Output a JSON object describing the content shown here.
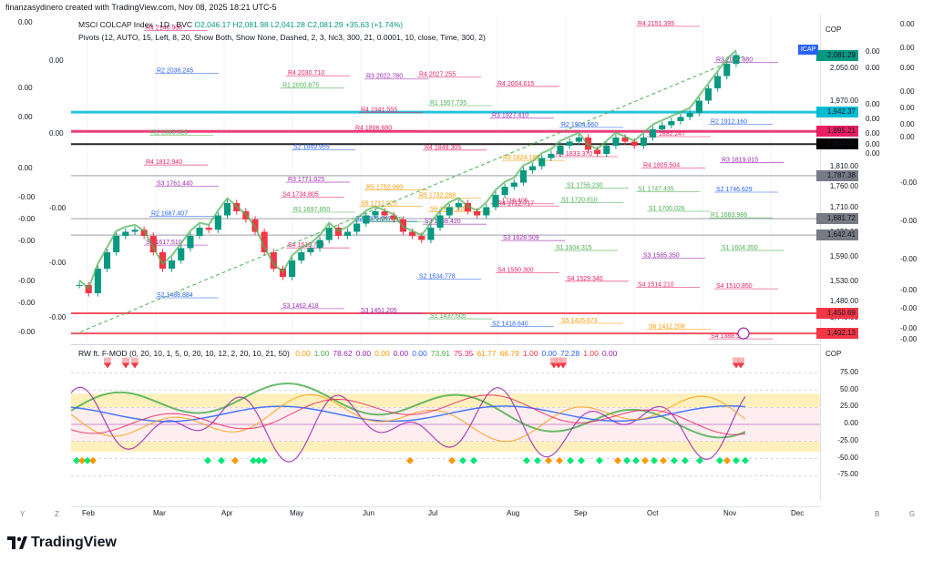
{
  "credit": "finanzasydinero created with TradingView.com, Nov 08, 2025 18:21 UTC-5",
  "legend": {
    "symbol": "MSCI COLCAP Index · 1D · BVC",
    "ohlc": "O2,046.17 H2,081.98 L2,041.28 C2,081.29 +35.63 (+1.74%)",
    "pivots": "Pivots (12, AUTO, 15, Left, 8, 20, Show Both, Show None, Dashed, 2, 3, hlc3, 300, 21, 0.0001, 10, close, Time, 300, 2)",
    "osc": "RW ft. F-MOD (0, 20, 10, 1, 5, 0, 20, 10, 12, 2, 20, 10, 21, 50)",
    "osc_values": [
      "0.00",
      "1.00",
      "78.62",
      "0.00",
      "0.00",
      "0.00",
      "0.00",
      "73.91",
      "75.35",
      "61.77",
      "66.79",
      "1.00",
      "0.00",
      "72.28",
      "1.00",
      "0.00"
    ],
    "osc_colors": [
      "#ff9800",
      "#4caf50",
      "#9c27b0",
      "#9c27b0",
      "#ff9800",
      "#9c27b0",
      "#2962ff",
      "#4caf50",
      "#e91e63",
      "#ff9800",
      "#ff9800",
      "#f23645",
      "#2962ff",
      "#2962ff",
      "#f23645",
      "#9c27b0"
    ]
  },
  "currency": "COP",
  "kcap_label": "ICAP",
  "price_axis": [
    "2,050.00",
    "1,970.00",
    "1,810.00",
    "1,760.00",
    "1,710.00",
    "1,650.00",
    "1,590.00",
    "1,530.00",
    "1,480.00",
    "1,440.00"
  ],
  "price_tags": [
    {
      "label": "2,081.29",
      "color": "#089981"
    },
    {
      "label": "1,942.37",
      "color": "#00bcd4"
    },
    {
      "label": "1,895.21",
      "color": "#e91e63"
    },
    {
      "label": "1,864.00",
      "color": "#000000"
    },
    {
      "label": "1,787.38",
      "color": "#787b86"
    },
    {
      "label": "1,681.72",
      "color": "#787b86"
    },
    {
      "label": "1,642.41",
      "color": "#787b86"
    },
    {
      "label": "1,450.69",
      "color": "#f23645"
    },
    {
      "label": "1,402.13",
      "color": "#f23645"
    }
  ],
  "osc_axis": [
    "75.00",
    "50.00",
    "25.00",
    "0.00",
    "-25.00",
    "-50.00",
    "-75.00"
  ],
  "left_axis": [
    "0.00",
    "0.00",
    "0.00",
    "0.00",
    "0.00",
    "0.00",
    "-0.00",
    "-0.00",
    "-0.00",
    "-0.00",
    "-0.00",
    "-0.00",
    "-0.00",
    "-0.00",
    "-0.00"
  ],
  "right_axis": [
    "0.00",
    "0.00",
    "0.00",
    "0.00",
    "0.00",
    "0.00",
    "0.00",
    "-0.00",
    "-0.00",
    "-0.00",
    "-0.00",
    "-0.00",
    "-0.00",
    "-0.00"
  ],
  "months": [
    "Feb",
    "Mar",
    "Apr",
    "May",
    "Jun",
    "Jul",
    "Aug",
    "Sep",
    "Oct",
    "Nov",
    "Dec"
  ],
  "corner_letters": [
    "Y",
    "Z",
    "B",
    "G"
  ],
  "pivot_labels": [
    {
      "t": "R4",
      "v": "2140.900",
      "c": "#e91e63"
    },
    {
      "t": "R4",
      "v": "2030.710",
      "c": "#e91e63"
    },
    {
      "t": "R3",
      "v": "2022.780",
      "c": "#9c27b0"
    },
    {
      "t": "R4",
      "v": "2027.255",
      "c": "#e91e63"
    },
    {
      "t": "R4",
      "v": "2004.615",
      "c": "#e91e63"
    },
    {
      "t": "R5",
      "v": "2189.180",
      "c": "#ff9800"
    },
    {
      "t": "R4",
      "v": "2151.395",
      "c": "#e91e63"
    },
    {
      "t": "R3",
      "v": "2062.880",
      "c": "#9c27b0"
    },
    {
      "t": "R2",
      "v": "2036.245",
      "c": "#2962ff"
    },
    {
      "t": "R1",
      "v": "2000.675",
      "c": "#4caf50"
    },
    {
      "t": "R4",
      "v": "1941.555",
      "c": "#e91e63"
    },
    {
      "t": "R1",
      "v": "1957.735",
      "c": "#4caf50"
    },
    {
      "t": "R3",
      "v": "1927.410",
      "c": "#9c27b0"
    },
    {
      "t": "R2",
      "v": "1904.660",
      "c": "#2962ff"
    },
    {
      "t": "R4",
      "v": "1882.247",
      "c": "#e91e63"
    },
    {
      "t": "R2",
      "v": "1912.160",
      "c": "#2962ff"
    },
    {
      "t": "R1",
      "v": "1885.525",
      "c": "#4caf50"
    },
    {
      "t": "S2",
      "v": "1849.955",
      "c": "#2962ff"
    },
    {
      "t": "R4",
      "v": "1896.680",
      "c": "#e91e63"
    },
    {
      "t": "R4",
      "v": "1849.305",
      "c": "#e91e63"
    },
    {
      "t": "R5",
      "v": "1824.185",
      "c": "#ff9800"
    },
    {
      "t": "R4",
      "v": "1833.370",
      "c": "#e91e63"
    },
    {
      "t": "R4",
      "v": "1805.504",
      "c": "#e91e63"
    },
    {
      "t": "R3",
      "v": "1819.015",
      "c": "#9c27b0"
    },
    {
      "t": "R4",
      "v": "1812.940",
      "c": "#e91e63"
    },
    {
      "t": "R3",
      "v": "1771.025",
      "c": "#9c27b0"
    },
    {
      "t": "R5",
      "v": "1752.060",
      "c": "#ff9800"
    },
    {
      "t": "R5",
      "v": "1732.288",
      "c": "#ff9800"
    },
    {
      "t": "R4",
      "v": "1712.717",
      "c": "#e91e63"
    },
    {
      "t": "S1",
      "v": "1756.230",
      "c": "#4caf50"
    },
    {
      "t": "S1",
      "v": "1747.435",
      "c": "#4caf50"
    },
    {
      "t": "S2",
      "v": "1746.629",
      "c": "#2962ff"
    },
    {
      "t": "S3",
      "v": "1761.440",
      "c": "#9c27b0"
    },
    {
      "t": "S4",
      "v": "1734.805",
      "c": "#e91e63"
    },
    {
      "t": "S5",
      "v": "1712.020",
      "c": "#ff9800"
    },
    {
      "t": "S6",
      "v": "1699.235",
      "c": "#ff9800"
    },
    {
      "t": "S4",
      "v": "1718.405",
      "c": "#e91e63"
    },
    {
      "t": "S1",
      "v": "1720.810",
      "c": "#4caf50"
    },
    {
      "t": "S1",
      "v": "1700.026",
      "c": "#4caf50"
    },
    {
      "t": "R1",
      "v": "1683.986",
      "c": "#4caf50"
    },
    {
      "t": "R2",
      "v": "1687.407",
      "c": "#2962ff"
    },
    {
      "t": "R1",
      "v": "1697.850",
      "c": "#4caf50"
    },
    {
      "t": "S2",
      "v": "1675.647",
      "c": "#2962ff"
    },
    {
      "t": "S3",
      "v": "1668.420",
      "c": "#9c27b0"
    },
    {
      "t": "S3",
      "v": "1628.509",
      "c": "#9c27b0"
    },
    {
      "t": "S1",
      "v": "1604.315",
      "c": "#4caf50"
    },
    {
      "t": "S3",
      "v": "1585.350",
      "c": "#9c27b0"
    },
    {
      "t": "S1",
      "v": "1604.350",
      "c": "#4caf50"
    },
    {
      "t": "S3",
      "v": "1617.510",
      "c": "#9c27b0"
    },
    {
      "t": "S4",
      "v": "1610.720",
      "c": "#e91e63"
    },
    {
      "t": "S1",
      "v": "1673.875",
      "c": "#4caf50"
    },
    {
      "t": "S2",
      "v": "1534.778",
      "c": "#2962ff"
    },
    {
      "t": "S4",
      "v": "1550.300",
      "c": "#e91e63"
    },
    {
      "t": "S4",
      "v": "1529.340",
      "c": "#e91e63"
    },
    {
      "t": "S4",
      "v": "1514.210",
      "c": "#e91e63"
    },
    {
      "t": "S4",
      "v": "1510.850",
      "c": "#e91e63"
    },
    {
      "t": "S2",
      "v": "1488.884",
      "c": "#2962ff"
    },
    {
      "t": "S3",
      "v": "1462.418",
      "c": "#9c27b0"
    },
    {
      "t": "S3",
      "v": "1451.205",
      "c": "#9c27b0"
    },
    {
      "t": "S1",
      "v": "1437.605",
      "c": "#4caf50"
    },
    {
      "t": "S2",
      "v": "1418.640",
      "c": "#2962ff"
    },
    {
      "t": "S5",
      "v": "1426.673",
      "c": "#ff9800"
    },
    {
      "t": "S6",
      "v": "1412.208",
      "c": "#ff9800"
    },
    {
      "t": "S4",
      "v": "1388.580",
      "c": "#e91e63"
    }
  ],
  "price_series": [
    1520,
    1500,
    1560,
    1600,
    1640,
    1650,
    1655,
    1640,
    1600,
    1560,
    1580,
    1610,
    1640,
    1660,
    1655,
    1690,
    1720,
    1700,
    1680,
    1650,
    1600,
    1560,
    1540,
    1580,
    1600,
    1610,
    1630,
    1660,
    1640,
    1650,
    1670,
    1690,
    1700,
    1690,
    1680,
    1650,
    1640,
    1630,
    1660,
    1690,
    1710,
    1720,
    1700,
    1690,
    1710,
    1740,
    1760,
    1770,
    1800,
    1810,
    1830,
    1840,
    1860,
    1870,
    1880,
    1850,
    1840,
    1860,
    1880,
    1870,
    1860,
    1880,
    1900,
    1910,
    1920,
    1930,
    1940,
    1970,
    2000,
    2030,
    2060,
    2081
  ]
}
